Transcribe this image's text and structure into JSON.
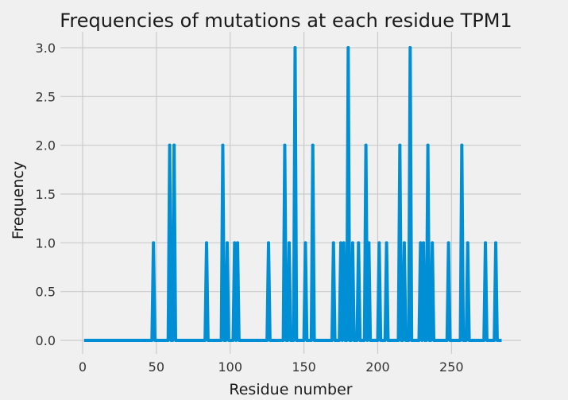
{
  "chart_data": {
    "type": "line",
    "title": "Frequencies of mutations at each residue TPM1",
    "xlabel": "Residue number",
    "ylabel": "Frequency",
    "xlim": [
      -15,
      297
    ],
    "ylim": [
      -0.15,
      3.15
    ],
    "xticks": [
      0,
      50,
      100,
      150,
      200,
      250
    ],
    "yticks": [
      0.0,
      0.5,
      1.0,
      1.5,
      2.0,
      2.5,
      3.0
    ],
    "xtick_labels": [
      "0",
      "50",
      "100",
      "150",
      "200",
      "250"
    ],
    "ytick_labels": [
      "0.0",
      "0.5",
      "1.0",
      "1.5",
      "2.0",
      "2.5",
      "3.0"
    ],
    "grid": true,
    "line_color": "#008fd5",
    "background_color": "#f0f0f0",
    "x_range": [
      1,
      284
    ],
    "nonzero_points": [
      {
        "x": 48,
        "y": 1
      },
      {
        "x": 59,
        "y": 2
      },
      {
        "x": 62,
        "y": 2
      },
      {
        "x": 84,
        "y": 1
      },
      {
        "x": 95,
        "y": 2
      },
      {
        "x": 98,
        "y": 1
      },
      {
        "x": 103,
        "y": 1
      },
      {
        "x": 105,
        "y": 1
      },
      {
        "x": 126,
        "y": 1
      },
      {
        "x": 137,
        "y": 2
      },
      {
        "x": 140,
        "y": 1
      },
      {
        "x": 144,
        "y": 3
      },
      {
        "x": 151,
        "y": 1
      },
      {
        "x": 156,
        "y": 2
      },
      {
        "x": 170,
        "y": 1
      },
      {
        "x": 175,
        "y": 1
      },
      {
        "x": 177,
        "y": 1
      },
      {
        "x": 180,
        "y": 3
      },
      {
        "x": 183,
        "y": 1
      },
      {
        "x": 187,
        "y": 1
      },
      {
        "x": 192,
        "y": 2
      },
      {
        "x": 194,
        "y": 1
      },
      {
        "x": 201,
        "y": 1
      },
      {
        "x": 206,
        "y": 1
      },
      {
        "x": 215,
        "y": 2
      },
      {
        "x": 218,
        "y": 1
      },
      {
        "x": 222,
        "y": 3
      },
      {
        "x": 229,
        "y": 1
      },
      {
        "x": 231,
        "y": 1
      },
      {
        "x": 234,
        "y": 2
      },
      {
        "x": 237,
        "y": 1
      },
      {
        "x": 248,
        "y": 1
      },
      {
        "x": 257,
        "y": 2
      },
      {
        "x": 261,
        "y": 1
      },
      {
        "x": 273,
        "y": 1
      },
      {
        "x": 280,
        "y": 1
      }
    ]
  }
}
